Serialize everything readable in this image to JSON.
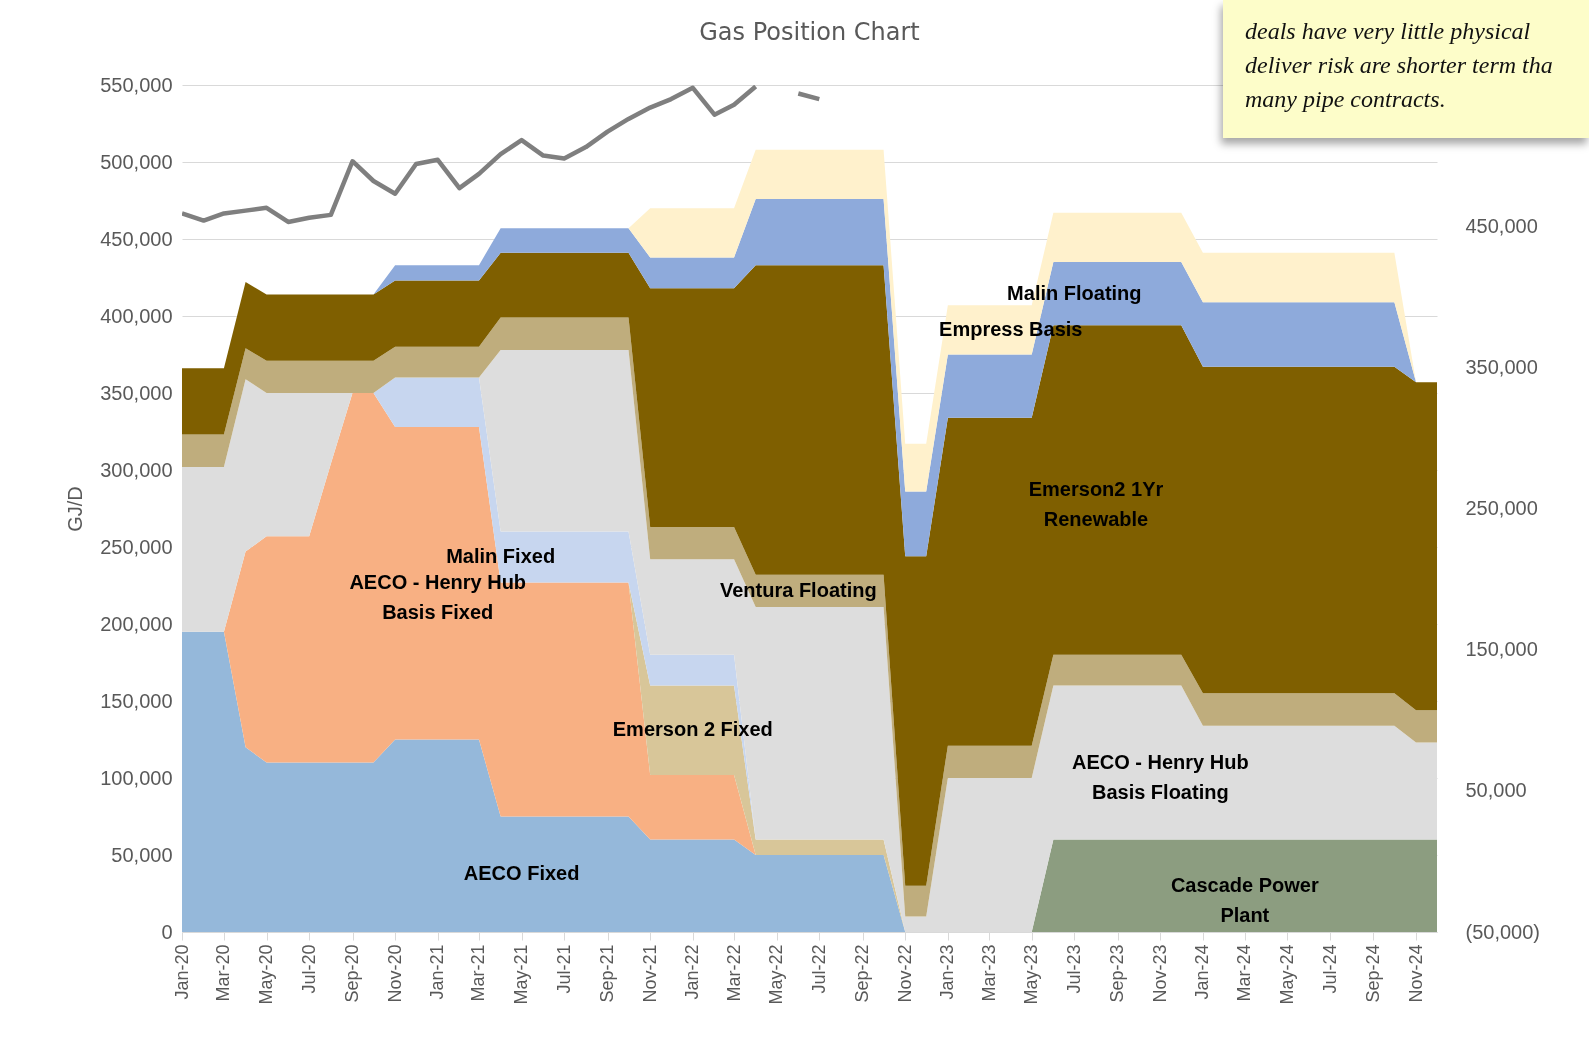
{
  "chart_data": {
    "type": "area",
    "title": "Gas Position Chart",
    "ylabel": "GJ/D",
    "stacked": true,
    "grid": "y",
    "annotations": [
      "deals have very little physical deliver risk are shorter term tha many pipe contracts."
    ],
    "x": [
      "2020-01",
      "2020-02",
      "2020-03",
      "2020-04",
      "2020-05",
      "2020-06",
      "2020-07",
      "2020-08",
      "2020-09",
      "2020-10",
      "2020-11",
      "2020-12",
      "2021-01",
      "2021-02",
      "2021-03",
      "2021-04",
      "2021-05",
      "2021-06",
      "2021-07",
      "2021-08",
      "2021-09",
      "2021-10",
      "2021-11",
      "2021-12",
      "2022-01",
      "2022-02",
      "2022-03",
      "2022-04",
      "2022-05",
      "2022-06",
      "2022-07",
      "2022-08",
      "2022-09",
      "2022-10",
      "2022-11",
      "2022-12",
      "2023-01",
      "2023-02",
      "2023-03",
      "2023-04",
      "2023-05",
      "2023-06",
      "2023-07",
      "2023-08",
      "2023-09",
      "2023-10",
      "2023-11",
      "2023-12",
      "2024-01",
      "2024-02",
      "2024-03",
      "2024-04",
      "2024-05",
      "2024-06",
      "2024-07",
      "2024-08",
      "2024-09",
      "2024-10",
      "2024-11",
      "2024-12"
    ],
    "xlim": [
      "2020-01",
      "2024-12"
    ],
    "xticks": [
      {
        "value": "2020-01",
        "label": "Jan-20"
      },
      {
        "value": "2020-03",
        "label": "Mar-20"
      },
      {
        "value": "2020-05",
        "label": "May-20"
      },
      {
        "value": "2020-07",
        "label": "Jul-20"
      },
      {
        "value": "2020-09",
        "label": "Sep-20"
      },
      {
        "value": "2020-11",
        "label": "Nov-20"
      },
      {
        "value": "2021-01",
        "label": "Jan-21"
      },
      {
        "value": "2021-03",
        "label": "Mar-21"
      },
      {
        "value": "2021-05",
        "label": "May-21"
      },
      {
        "value": "2021-07",
        "label": "Jul-21"
      },
      {
        "value": "2021-09",
        "label": "Sep-21"
      },
      {
        "value": "2021-11",
        "label": "Nov-21"
      },
      {
        "value": "2022-01",
        "label": "Jan-22"
      },
      {
        "value": "2022-03",
        "label": "Mar-22"
      },
      {
        "value": "2022-05",
        "label": "May-22"
      },
      {
        "value": "2022-07",
        "label": "Jul-22"
      },
      {
        "value": "2022-09",
        "label": "Sep-22"
      },
      {
        "value": "2022-11",
        "label": "Nov-22"
      },
      {
        "value": "2023-01",
        "label": "Jan-23"
      },
      {
        "value": "2023-03",
        "label": "Mar-23"
      },
      {
        "value": "2023-05",
        "label": "May-23"
      },
      {
        "value": "2023-07",
        "label": "Jul-23"
      },
      {
        "value": "2023-09",
        "label": "Sep-23"
      },
      {
        "value": "2023-11",
        "label": "Nov-23"
      },
      {
        "value": "2024-01",
        "label": "Jan-24"
      },
      {
        "value": "2024-03",
        "label": "Mar-24"
      },
      {
        "value": "2024-05",
        "label": "May-24"
      },
      {
        "value": "2024-07",
        "label": "Jul-24"
      },
      {
        "value": "2024-09",
        "label": "Sep-24"
      },
      {
        "value": "2024-11",
        "label": "Nov-24"
      }
    ],
    "ylim": [
      0,
      550000
    ],
    "yticks": [
      0,
      {
        "value": 50000,
        "label": "50,000"
      },
      {
        "value": 100000,
        "label": "100,000"
      },
      {
        "value": 150000,
        "label": "150,000"
      },
      {
        "value": 200000,
        "label": "200,000"
      },
      {
        "value": 250000,
        "label": "250,000"
      },
      {
        "value": 300000,
        "label": "300,000"
      },
      {
        "value": 350000,
        "label": "350,000"
      },
      {
        "value": 400000,
        "label": "400,000"
      },
      {
        "value": 450000,
        "label": "450,000"
      },
      {
        "value": 500000,
        "label": "500,000"
      },
      {
        "value": 550000,
        "label": "550,000"
      }
    ],
    "y2lim": [
      -50000,
      550000
    ],
    "y2ticks": [
      {
        "value": -50000,
        "label": "(50,000)"
      },
      {
        "value": 50000,
        "label": "50,000"
      },
      {
        "value": 150000,
        "label": "150,000"
      },
      {
        "value": 250000,
        "label": "250,000"
      },
      {
        "value": 350000,
        "label": "350,000"
      },
      {
        "value": 450000,
        "label": "450,000"
      }
    ],
    "series": [
      {
        "name": "AECO Fixed",
        "color": "#95b8da",
        "values": [
          195000,
          195000,
          195000,
          120000,
          110000,
          110000,
          110000,
          110000,
          110000,
          110000,
          125000,
          125000,
          125000,
          125000,
          125000,
          75000,
          75000,
          75000,
          75000,
          75000,
          75000,
          75000,
          60000,
          60000,
          60000,
          60000,
          60000,
          50000,
          50000,
          50000,
          50000,
          50000,
          50000,
          50000,
          0,
          null,
          null,
          null,
          null,
          null,
          null,
          null,
          null,
          null,
          null,
          null,
          null,
          null,
          null,
          null,
          null,
          null,
          null,
          null,
          null,
          null,
          null,
          null,
          null,
          null
        ]
      },
      {
        "name": "AECO - Henry Hub Basis Fixed",
        "color": "#f8b083",
        "values": [
          null,
          null,
          0,
          127000,
          147000,
          147000,
          147000,
          194000,
          240000,
          240000,
          203000,
          203000,
          203000,
          203000,
          203000,
          152000,
          152000,
          152000,
          152000,
          152000,
          152000,
          152000,
          42000,
          42000,
          42000,
          42000,
          42000,
          0,
          null,
          null,
          null,
          null,
          null,
          null,
          null,
          null,
          null,
          null,
          null,
          null,
          null,
          null,
          null,
          null,
          null,
          null,
          null,
          null,
          null,
          null,
          null,
          null,
          null,
          null,
          null,
          null,
          null,
          null,
          null,
          null
        ]
      },
      {
        "name": "Emerson 2 Fixed",
        "color": "#d8c699",
        "values": [
          null,
          null,
          null,
          null,
          null,
          null,
          null,
          null,
          null,
          null,
          null,
          null,
          null,
          null,
          null,
          null,
          null,
          null,
          null,
          null,
          null,
          0,
          58000,
          58000,
          58000,
          58000,
          58000,
          10000,
          10000,
          10000,
          10000,
          10000,
          10000,
          10000,
          0,
          null,
          null,
          null,
          null,
          null,
          null,
          null,
          null,
          null,
          null,
          null,
          null,
          null,
          null,
          null,
          null,
          null,
          null,
          null,
          null,
          null,
          null,
          null,
          null,
          null
        ]
      },
      {
        "name": "Malin Fixed",
        "color": "#c7d6ef",
        "values": [
          null,
          null,
          null,
          null,
          null,
          null,
          null,
          null,
          null,
          0,
          32000,
          32000,
          32000,
          32000,
          32000,
          33000,
          33000,
          33000,
          33000,
          33000,
          33000,
          33000,
          20000,
          20000,
          20000,
          20000,
          20000,
          0,
          null,
          null,
          null,
          null,
          null,
          null,
          null,
          null,
          null,
          null,
          null,
          null,
          null,
          null,
          null,
          null,
          null,
          null,
          null,
          null,
          null,
          null,
          null,
          null,
          null,
          null,
          null,
          null,
          null,
          null,
          null,
          null
        ]
      },
      {
        "name": "Cascade Power Plant",
        "color": "#8c9d80",
        "values": [
          null,
          null,
          null,
          null,
          null,
          null,
          null,
          null,
          null,
          null,
          null,
          null,
          null,
          null,
          null,
          null,
          null,
          null,
          null,
          null,
          null,
          null,
          null,
          null,
          null,
          null,
          null,
          null,
          null,
          null,
          null,
          null,
          null,
          null,
          null,
          null,
          null,
          null,
          null,
          null,
          0,
          60000,
          60000,
          60000,
          60000,
          60000,
          60000,
          60000,
          60000,
          60000,
          60000,
          60000,
          60000,
          60000,
          60000,
          60000,
          60000,
          60000,
          60000,
          60000
        ]
      },
      {
        "name": "AECO - Henry Hub Basis Floating",
        "color": "#dddddd",
        "values": [
          107000,
          107000,
          107000,
          112000,
          93000,
          93000,
          93000,
          46000,
          0,
          null,
          null,
          null,
          null,
          null,
          0,
          118000,
          118000,
          118000,
          118000,
          118000,
          118000,
          118000,
          62000,
          62000,
          62000,
          62000,
          62000,
          151000,
          151000,
          151000,
          151000,
          151000,
          151000,
          151000,
          10000,
          10000,
          100000,
          100000,
          100000,
          100000,
          100000,
          100000,
          100000,
          100000,
          100000,
          100000,
          100000,
          100000,
          74000,
          74000,
          74000,
          74000,
          74000,
          74000,
          74000,
          74000,
          74000,
          74000,
          63000,
          63000
        ]
      },
      {
        "name": "Ventura Floating",
        "color": "#bfad7d",
        "values": [
          21000,
          21000,
          21000,
          20000,
          21000,
          21000,
          21000,
          21000,
          21000,
          21000,
          20000,
          20000,
          20000,
          20000,
          20000,
          21000,
          21000,
          21000,
          21000,
          21000,
          21000,
          21000,
          21000,
          21000,
          21000,
          21000,
          21000,
          21000,
          21000,
          21000,
          21000,
          21000,
          21000,
          21000,
          20000,
          20000,
          21000,
          21000,
          21000,
          21000,
          21000,
          20000,
          20000,
          20000,
          20000,
          20000,
          20000,
          20000,
          21000,
          21000,
          21000,
          21000,
          21000,
          21000,
          21000,
          21000,
          21000,
          21000,
          21000,
          21000
        ]
      },
      {
        "name": "Emerson2 1Yr Renewable",
        "color": "#7f5f00",
        "values": [
          43000,
          43000,
          43000,
          43000,
          43000,
          43000,
          43000,
          43000,
          43000,
          43000,
          43000,
          43000,
          43000,
          43000,
          43000,
          42000,
          42000,
          42000,
          42000,
          42000,
          42000,
          42000,
          155000,
          155000,
          155000,
          155000,
          155000,
          201000,
          201000,
          201000,
          201000,
          201000,
          201000,
          201000,
          214000,
          214000,
          213000,
          213000,
          213000,
          213000,
          213000,
          214000,
          214000,
          214000,
          214000,
          214000,
          214000,
          214000,
          212000,
          212000,
          212000,
          212000,
          212000,
          212000,
          212000,
          212000,
          212000,
          212000,
          213000,
          213000
        ]
      },
      {
        "name": "Malin Floating",
        "color": "#8eaadb",
        "values": [
          null,
          null,
          null,
          null,
          null,
          null,
          null,
          null,
          null,
          0,
          10000,
          10000,
          10000,
          10000,
          10000,
          16000,
          16000,
          16000,
          16000,
          16000,
          16000,
          16000,
          20000,
          20000,
          20000,
          20000,
          20000,
          43000,
          43000,
          43000,
          43000,
          43000,
          43000,
          43000,
          42000,
          42000,
          41000,
          41000,
          41000,
          41000,
          41000,
          41000,
          41000,
          41000,
          41000,
          41000,
          41000,
          41000,
          42000,
          42000,
          42000,
          42000,
          42000,
          42000,
          42000,
          42000,
          42000,
          42000,
          0,
          null
        ]
      },
      {
        "name": "Empress Basis",
        "color": "#fff1cc",
        "values": [
          null,
          null,
          null,
          null,
          null,
          null,
          null,
          null,
          null,
          null,
          null,
          null,
          null,
          null,
          null,
          null,
          null,
          null,
          null,
          null,
          null,
          0,
          32000,
          32000,
          32000,
          32000,
          32000,
          32000,
          32000,
          32000,
          32000,
          32000,
          32000,
          32000,
          31000,
          31000,
          32000,
          32000,
          32000,
          32000,
          32000,
          32000,
          32000,
          32000,
          32000,
          32000,
          32000,
          32000,
          32000,
          32000,
          32000,
          32000,
          32000,
          32000,
          32000,
          32000,
          32000,
          32000,
          0,
          null
        ]
      },
      {
        "type": "line",
        "axis": "y2",
        "color": "#7f7f7f",
        "values": [
          459000,
          454000,
          459000,
          461000,
          463000,
          453000,
          456000,
          458000,
          496000,
          482000,
          473000,
          494000,
          497000,
          477000,
          487000,
          501000,
          511000,
          500000,
          498000,
          506000,
          517000,
          526000,
          534000,
          540000,
          548000,
          529000,
          536000,
          549000,
          null,
          544000,
          540000,
          null,
          null,
          null,
          null,
          null,
          null,
          null,
          null,
          null,
          null,
          null,
          null,
          null,
          null,
          null,
          null,
          null,
          null,
          null,
          null,
          null,
          null,
          null,
          null,
          null,
          null,
          null,
          null,
          null
        ]
      }
    ]
  }
}
